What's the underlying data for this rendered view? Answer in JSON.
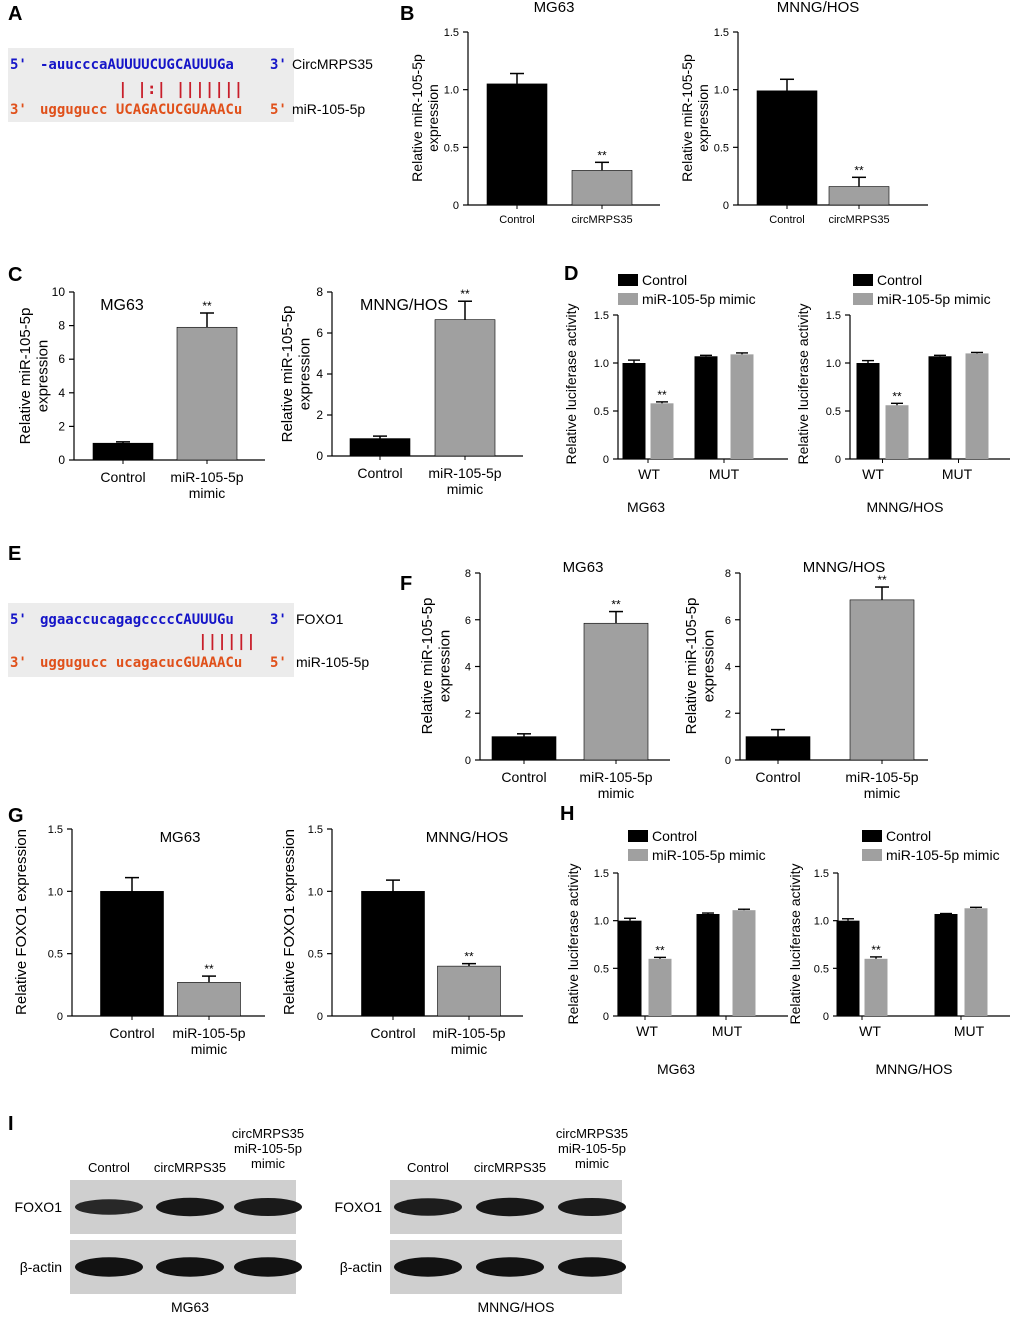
{
  "colors": {
    "control": "#000000",
    "treatment": "#a0a0a0",
    "seq_top": "#1515c8",
    "seq_bottom": "#e0501a",
    "match": "#c81e2a",
    "seq_box": "#ececec"
  },
  "panels": {
    "A": {
      "letter": "A",
      "top_prefix": "5'",
      "top_seq": "-auucccaAUUUUCUGCAUUUGa",
      "top_suffix": "3'",
      "top_label": "CircMRPS35",
      "match_marks": "| |:| |||||||",
      "bottom_prefix": "3'",
      "bottom_seq": "uggugucc UCAGACUCGUAAACu",
      "bottom_suffix": "5'",
      "bottom_label": "miR-105-5p"
    },
    "E": {
      "letter": "E",
      "top_prefix": "5'",
      "top_seq": "ggaaccucagagccccCAUUUGu",
      "top_suffix": "3'",
      "top_label": "FOXO1",
      "match_marks": "||||||",
      "bottom_prefix": "3'",
      "bottom_seq": "uggugucc ucagacucGUAAACu",
      "bottom_suffix": "5'",
      "bottom_label": "miR-105-5p"
    },
    "I": {
      "letter": "I",
      "blots": [
        {
          "name": "MG63",
          "lanes": [
            "Control",
            "circMRPS35",
            "circMRPS35\nmiR-105-5p\nmimic"
          ],
          "rows": [
            "FOXO1",
            "β-actin"
          ],
          "band_intensity": {
            "FOXO1": [
              0.55,
              0.85,
              0.8
            ],
            "β-actin": [
              0.95,
              0.95,
              0.95
            ]
          }
        },
        {
          "name": "MNNG/HOS",
          "lanes": [
            "Control",
            "circMRPS35",
            "circMRPS35\nmiR-105-5p\nmimic"
          ],
          "rows": [
            "FOXO1",
            "β-actin"
          ],
          "band_intensity": {
            "FOXO1": [
              0.75,
              0.85,
              0.8
            ],
            "β-actin": [
              0.95,
              0.95,
              0.95
            ]
          }
        }
      ]
    }
  },
  "chart_data": [
    {
      "id": "B1",
      "letter": "B",
      "type": "bar",
      "title": "MG63",
      "ylabel": "Relative miR-105-5p\nexpression",
      "categories": [
        "Control",
        "circMRPS35"
      ],
      "values": [
        1.05,
        0.3
      ],
      "errors": [
        0.09,
        0.07
      ],
      "sig": [
        "",
        "**"
      ],
      "ylim": [
        0,
        1.5
      ],
      "ticks": [
        "0",
        "0.5",
        "1.0",
        "1.5"
      ]
    },
    {
      "id": "B2",
      "type": "bar",
      "title": "MNNG/HOS",
      "ylabel": "Relative miR-105-5p\nexpression",
      "categories": [
        "Control",
        "circMRPS35"
      ],
      "values": [
        0.99,
        0.16
      ],
      "errors": [
        0.1,
        0.08
      ],
      "sig": [
        "",
        "**"
      ],
      "ylim": [
        0,
        1.5
      ],
      "ticks": [
        "0",
        "0.5",
        "1.0",
        "1.5"
      ]
    },
    {
      "id": "C1",
      "letter": "C",
      "type": "bar",
      "title": "MG63",
      "ylabel": "Relative miR-105-5p\nexpression",
      "categories": [
        "Control",
        "miR-105-5p\nmimic"
      ],
      "values": [
        1.0,
        7.9
      ],
      "errors": [
        0.08,
        0.85
      ],
      "sig": [
        "",
        "**"
      ],
      "ylim": [
        0,
        10
      ],
      "ticks": [
        "0",
        "2",
        "4",
        "6",
        "8",
        "10"
      ]
    },
    {
      "id": "C2",
      "type": "bar",
      "title": "MNNG/HOS",
      "ylabel": "Relative miR-105-5p\nexpression",
      "categories": [
        "Control",
        "miR-105-5p\nmimic"
      ],
      "values": [
        0.85,
        6.65
      ],
      "errors": [
        0.12,
        0.9
      ],
      "sig": [
        "",
        "**"
      ],
      "ylim": [
        0,
        8
      ],
      "ticks": [
        "0",
        "2",
        "4",
        "6",
        "8"
      ]
    },
    {
      "id": "D1",
      "letter": "D",
      "type": "grouped-bar",
      "title": "",
      "ylabel": "Relative luciferase activity",
      "xlabel": "MG63",
      "categories": [
        "WT",
        "MUT"
      ],
      "series": [
        {
          "name": "Control",
          "values": [
            1.0,
            1.07
          ],
          "errors": [
            0.03,
            0.01
          ]
        },
        {
          "name": "miR-105-5p mimic",
          "values": [
            0.58,
            1.09
          ],
          "errors": [
            0.015,
            0.015
          ]
        }
      ],
      "sig": [
        [
          "",
          ""
        ],
        [
          "**",
          ""
        ]
      ],
      "legend": [
        "Control",
        "miR-105-5p mimic"
      ],
      "ylim": [
        0,
        1.5
      ],
      "ticks": [
        "0",
        "0.5",
        "1.0",
        "1.5"
      ]
    },
    {
      "id": "D2",
      "type": "grouped-bar",
      "title": "",
      "ylabel": "Relative luciferase activity",
      "xlabel": "MNNG/HOS",
      "categories": [
        "WT",
        "MUT"
      ],
      "series": [
        {
          "name": "Control",
          "values": [
            1.0,
            1.07
          ],
          "errors": [
            0.025,
            0.01
          ]
        },
        {
          "name": "miR-105-5p mimic",
          "values": [
            0.56,
            1.1
          ],
          "errors": [
            0.02,
            0.01
          ]
        }
      ],
      "sig": [
        [
          "",
          ""
        ],
        [
          "**",
          ""
        ]
      ],
      "legend": [
        "Control",
        "miR-105-5p mimic"
      ],
      "ylim": [
        0,
        1.5
      ],
      "ticks": [
        "0",
        "0.5",
        "1.0",
        "1.5"
      ]
    },
    {
      "id": "F1",
      "letter": "F",
      "type": "bar",
      "title": "MG63",
      "ylabel": "Relative miR-105-5p\nexpression",
      "categories": [
        "Control",
        "miR-105-5p\nmimic"
      ],
      "values": [
        1.0,
        5.85
      ],
      "errors": [
        0.12,
        0.5
      ],
      "sig": [
        "",
        "**"
      ],
      "ylim": [
        0,
        8
      ],
      "ticks": [
        "0",
        "2",
        "4",
        "6",
        "8"
      ]
    },
    {
      "id": "F2",
      "type": "bar",
      "title": "MNNG/HOS",
      "ylabel": "Relative miR-105-5p\nexpression",
      "categories": [
        "Control",
        "miR-105-5p\nmimic"
      ],
      "values": [
        1.0,
        6.85
      ],
      "errors": [
        0.3,
        0.55
      ],
      "sig": [
        "",
        "**"
      ],
      "ylim": [
        0,
        8
      ],
      "ticks": [
        "0",
        "2",
        "4",
        "6",
        "8"
      ]
    },
    {
      "id": "G1",
      "letter": "G",
      "type": "bar",
      "title": "MG63",
      "ylabel": "Relative FOXO1 expression",
      "categories": [
        "Control",
        "miR-105-5p\nmimic"
      ],
      "values": [
        1.0,
        0.27
      ],
      "errors": [
        0.11,
        0.05
      ],
      "sig": [
        "",
        "**"
      ],
      "ylim": [
        0,
        1.5
      ],
      "ticks": [
        "0",
        "0.5",
        "1.0",
        "1.5"
      ]
    },
    {
      "id": "G2",
      "type": "bar",
      "title": "MNNG/HOS",
      "ylabel": "Relative FOXO1 expression",
      "categories": [
        "Control",
        "miR-105-5p\nmimic"
      ],
      "values": [
        1.0,
        0.4
      ],
      "errors": [
        0.09,
        0.02
      ],
      "sig": [
        "",
        "**"
      ],
      "ylim": [
        0,
        1.5
      ],
      "ticks": [
        "0",
        "0.5",
        "1.0",
        "1.5"
      ]
    },
    {
      "id": "H1",
      "letter": "H",
      "type": "grouped-bar",
      "title": "",
      "ylabel": "Relative luciferase activity",
      "xlabel": "MG63",
      "categories": [
        "WT",
        "MUT"
      ],
      "series": [
        {
          "name": "Control",
          "values": [
            1.0,
            1.07
          ],
          "errors": [
            0.025,
            0.01
          ]
        },
        {
          "name": "miR-105-5p mimic",
          "values": [
            0.6,
            1.11
          ],
          "errors": [
            0.015,
            0.01
          ]
        }
      ],
      "sig": [
        [
          "",
          ""
        ],
        [
          "**",
          ""
        ]
      ],
      "legend": [
        "Control",
        "miR-105-5p mimic"
      ],
      "ylim": [
        0,
        1.5
      ],
      "ticks": [
        "0",
        "0.5",
        "1.0",
        "1.5"
      ]
    },
    {
      "id": "H2",
      "type": "grouped-bar",
      "title": "",
      "ylabel": "Relative luciferase activity",
      "xlabel": "MNNG/HOS",
      "categories": [
        "WT",
        "MUT"
      ],
      "series": [
        {
          "name": "Control",
          "values": [
            1.0,
            1.07
          ],
          "errors": [
            0.02,
            0.005
          ]
        },
        {
          "name": "miR-105-5p mimic",
          "values": [
            0.6,
            1.13
          ],
          "errors": [
            0.02,
            0.01
          ]
        }
      ],
      "sig": [
        [
          "",
          ""
        ],
        [
          "**",
          ""
        ]
      ],
      "legend": [
        "Control",
        "miR-105-5p mimic"
      ],
      "ylim": [
        0,
        1.5
      ],
      "ticks": [
        "0",
        "0.5",
        "1.0",
        "1.5"
      ]
    }
  ]
}
